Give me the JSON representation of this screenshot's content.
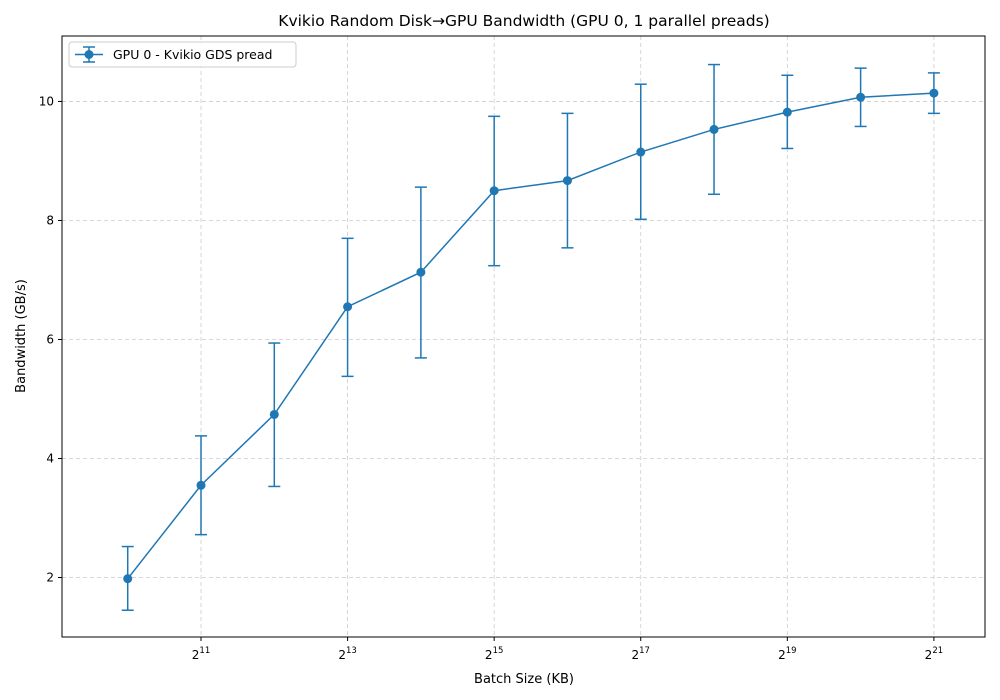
{
  "chart_data": {
    "type": "line",
    "title": "Kvikio Random Disk→GPU Bandwidth (GPU 0, 1 parallel preads)",
    "xlabel": "Batch Size (KB)",
    "ylabel": "Bandwidth (GB/s)",
    "x_scale": "log2",
    "x_ticks": [
      {
        "value": 2048,
        "base": "2",
        "exp": "11"
      },
      {
        "value": 8192,
        "base": "2",
        "exp": "13"
      },
      {
        "value": 32768,
        "base": "2",
        "exp": "15"
      },
      {
        "value": 131072,
        "base": "2",
        "exp": "17"
      },
      {
        "value": 524288,
        "base": "2",
        "exp": "19"
      },
      {
        "value": 2097152,
        "base": "2",
        "exp": "21"
      }
    ],
    "y_ticks": [
      2,
      4,
      6,
      8,
      10
    ],
    "xlim": [
      550,
      3400000
    ],
    "ylim": [
      1.0,
      11.1
    ],
    "grid": true,
    "legend_position": "top-left",
    "colors": {
      "series": "#1f77b4",
      "grid": "#cccccc"
    },
    "x": [
      1024,
      2048,
      4096,
      8192,
      16384,
      32768,
      65536,
      131072,
      262144,
      524288,
      1048576,
      2097152
    ],
    "series": [
      {
        "name": "GPU 0 - Kvikio GDS pread",
        "values": [
          1.98,
          3.55,
          4.74,
          6.55,
          7.13,
          8.5,
          8.67,
          9.15,
          9.53,
          9.82,
          10.07,
          10.14
        ],
        "err_low": [
          1.45,
          2.72,
          3.53,
          5.38,
          5.69,
          7.24,
          7.54,
          8.02,
          8.44,
          9.21,
          9.58,
          9.8
        ],
        "err_high": [
          2.52,
          4.38,
          5.94,
          7.7,
          8.56,
          9.75,
          9.8,
          10.29,
          10.62,
          10.44,
          10.56,
          10.48
        ]
      }
    ]
  }
}
